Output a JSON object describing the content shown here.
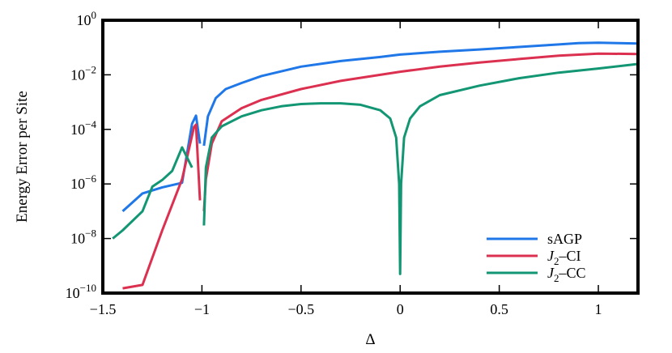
{
  "chart_data": {
    "type": "line",
    "xlabel": "Δ",
    "ylabel": "Energy Error per Site",
    "xlim": [
      -1.5,
      1.2
    ],
    "ylim": [
      1e-10,
      1
    ],
    "yscale": "log",
    "grid": false,
    "legend_position": "bottom-right",
    "x_ticks": [
      {
        "value": -1.5,
        "label": "−1.5"
      },
      {
        "value": -1.0,
        "label": "−1"
      },
      {
        "value": -0.5,
        "label": "−0.5"
      },
      {
        "value": 0.0,
        "label": "0"
      },
      {
        "value": 0.5,
        "label": "0.5"
      },
      {
        "value": 1.0,
        "label": "1"
      }
    ],
    "y_ticks": [
      {
        "value": 1e-10,
        "base": "10",
        "exp": "−10"
      },
      {
        "value": 1e-08,
        "base": "10",
        "exp": "−8"
      },
      {
        "value": 1e-06,
        "base": "10",
        "exp": "−6"
      },
      {
        "value": 0.0001,
        "base": "10",
        "exp": "−4"
      },
      {
        "value": 0.01,
        "base": "10",
        "exp": "−2"
      },
      {
        "value": 1,
        "base": "10",
        "exp": "0"
      }
    ],
    "series": [
      {
        "name": "sAGP",
        "legend_parts": [
          {
            "text": "sAGP",
            "italic": false,
            "sub": false
          }
        ],
        "color": "#1f77e8",
        "segments": [
          [
            [
              -1.4,
              1e-07
            ],
            [
              -1.3,
              4.5e-07
            ],
            [
              -1.2,
              7.5e-07
            ],
            [
              -1.1,
              1.1e-06
            ],
            [
              -1.05,
              0.00016
            ],
            [
              -1.03,
              0.00032
            ],
            [
              -1.01,
              3e-05
            ]
          ],
          [
            [
              -0.99,
              2.5e-05
            ],
            [
              -0.97,
              0.0003
            ],
            [
              -0.93,
              0.0014
            ],
            [
              -0.88,
              0.003
            ],
            [
              -0.8,
              0.005
            ],
            [
              -0.7,
              0.009
            ],
            [
              -0.5,
              0.02
            ],
            [
              -0.3,
              0.032
            ],
            [
              -0.1,
              0.045
            ],
            [
              0.0,
              0.055
            ],
            [
              0.2,
              0.07
            ],
            [
              0.4,
              0.085
            ],
            [
              0.6,
              0.105
            ],
            [
              0.8,
              0.13
            ],
            [
              0.9,
              0.145
            ],
            [
              1.0,
              0.15
            ],
            [
              1.1,
              0.145
            ],
            [
              1.2,
              0.14
            ]
          ]
        ]
      },
      {
        "name": "J2–CI",
        "legend_parts": [
          {
            "text": "J",
            "italic": true,
            "sub": false
          },
          {
            "text": "2",
            "italic": false,
            "sub": true
          },
          {
            "text": "–CI",
            "italic": false,
            "sub": false
          }
        ],
        "color": "#dc3050",
        "segments": [
          [
            [
              -1.4,
              1.5e-10
            ],
            [
              -1.3,
              2e-10
            ],
            [
              -1.2,
              2e-08
            ],
            [
              -1.1,
              1.5e-06
            ],
            [
              -1.04,
              0.00012
            ],
            [
              -1.03,
              0.00015
            ],
            [
              -1.01,
              2.5e-07
            ]
          ],
          [
            [
              -0.99,
              1e-07
            ],
            [
              -0.98,
              1.5e-06
            ],
            [
              -0.95,
              3e-05
            ],
            [
              -0.9,
              0.0002
            ],
            [
              -0.8,
              0.0006
            ],
            [
              -0.7,
              0.0012
            ],
            [
              -0.5,
              0.003
            ],
            [
              -0.3,
              0.006
            ],
            [
              -0.1,
              0.01
            ],
            [
              0.0,
              0.013
            ],
            [
              0.2,
              0.02
            ],
            [
              0.4,
              0.028
            ],
            [
              0.6,
              0.038
            ],
            [
              0.8,
              0.05
            ],
            [
              1.0,
              0.06
            ],
            [
              1.2,
              0.058
            ]
          ]
        ]
      },
      {
        "name": "J2–CC",
        "legend_parts": [
          {
            "text": "J",
            "italic": true,
            "sub": false
          },
          {
            "text": "2",
            "italic": false,
            "sub": true
          },
          {
            "text": "–CC",
            "italic": false,
            "sub": false
          }
        ],
        "color": "#129673",
        "segments": [
          [
            [
              -1.45,
              1e-08
            ],
            [
              -1.4,
              2e-08
            ],
            [
              -1.3,
              1e-07
            ],
            [
              -1.25,
              8e-07
            ],
            [
              -1.2,
              1.4e-06
            ],
            [
              -1.15,
              3e-06
            ],
            [
              -1.1,
              2.2e-05
            ],
            [
              -1.05,
              4e-06
            ]
          ],
          [
            [
              -0.99,
              3e-08
            ],
            [
              -0.98,
              4e-06
            ],
            [
              -0.95,
              5e-05
            ],
            [
              -0.9,
              0.00013
            ],
            [
              -0.8,
              0.0003
            ],
            [
              -0.7,
              0.0005
            ],
            [
              -0.6,
              0.0007
            ],
            [
              -0.5,
              0.00085
            ],
            [
              -0.4,
              0.0009
            ],
            [
              -0.3,
              0.0009
            ],
            [
              -0.2,
              0.0008
            ],
            [
              -0.1,
              0.0005
            ],
            [
              -0.05,
              0.00025
            ],
            [
              -0.02,
              5e-05
            ],
            [
              -0.005,
              1e-06
            ],
            [
              0.0,
              5e-10
            ],
            [
              0.005,
              1e-06
            ],
            [
              0.02,
              5e-05
            ],
            [
              0.05,
              0.00025
            ],
            [
              0.1,
              0.0007
            ],
            [
              0.2,
              0.0018
            ],
            [
              0.4,
              0.004
            ],
            [
              0.6,
              0.0075
            ],
            [
              0.8,
              0.012
            ],
            [
              1.0,
              0.017
            ],
            [
              1.2,
              0.025
            ]
          ]
        ]
      }
    ]
  }
}
